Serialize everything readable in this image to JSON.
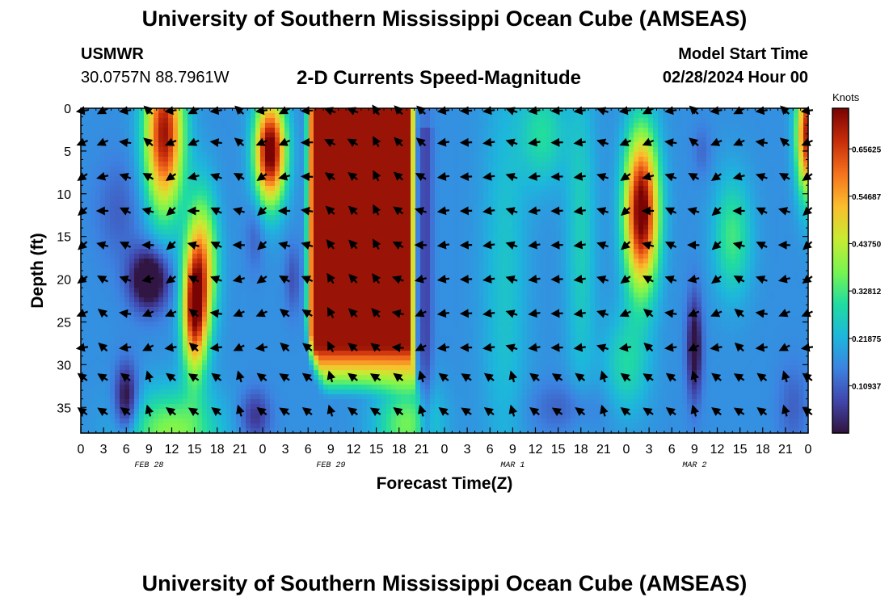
{
  "page": {
    "title": "University of Southern Mississippi Ocean Cube (AMSEAS)",
    "footer_title": "University of Southern Mississippi Ocean Cube (AMSEAS)",
    "station": "USMWR",
    "coordinates": "30.0757N  88.7961W",
    "plot_title": "2-D Currents Speed-Magnitude",
    "model_start_label": "Model Start Time",
    "model_start_value": "02/28/2024 Hour 00"
  },
  "chart_data": {
    "type": "heatmap",
    "title": "2-D Currents Speed-Magnitude",
    "xlabel": "Forecast Time(Z)",
    "ylabel": "Depth (ft)",
    "x_range_hours": [
      0,
      96
    ],
    "ylim": [
      0,
      38
    ],
    "x_ticks": [
      "0",
      "3",
      "6",
      "9",
      "12",
      "15",
      "18",
      "21",
      "0",
      "3",
      "6",
      "9",
      "12",
      "15",
      "18",
      "21",
      "0",
      "3",
      "6",
      "9",
      "12",
      "15",
      "18",
      "21",
      "0",
      "3",
      "6",
      "9",
      "12",
      "15",
      "18",
      "21",
      "0"
    ],
    "y_ticks": [
      "0",
      "5",
      "10",
      "15",
      "20",
      "25",
      "30",
      "35"
    ],
    "date_labels": [
      {
        "text": "FEB 28",
        "hour": 9
      },
      {
        "text": "FEB 29",
        "hour": 33
      },
      {
        "text": "MAR 1",
        "hour": 57
      },
      {
        "text": "MAR 2",
        "hour": 81
      }
    ],
    "colorbar": {
      "title": "Knots",
      "ticks": [
        "0.65625",
        "0.54687",
        "0.43750",
        "0.32812",
        "0.21875",
        "0.10937"
      ],
      "range": [
        0,
        0.75
      ]
    },
    "features": [
      {
        "hour": 11,
        "depth": 3,
        "speed": 0.55,
        "sh": 2.5,
        "sd": 9
      },
      {
        "hour": 15,
        "depth": 24,
        "speed": 0.48,
        "sh": 1.6,
        "sd": 7
      },
      {
        "hour": 16,
        "depth": 18,
        "speed": 0.34,
        "sh": 2.0,
        "sd": 8
      },
      {
        "hour": 25,
        "depth": 5,
        "speed": 0.62,
        "sh": 2.0,
        "sd": 6
      },
      {
        "hour": 12,
        "depth": 38,
        "speed": 0.22,
        "sh": 6,
        "sd": 5
      },
      {
        "hour": 9,
        "depth": 20,
        "speed": -0.26,
        "sh": 2.5,
        "sd": 3.5
      },
      {
        "hour": 6,
        "depth": 34,
        "speed": -0.2,
        "sh": 1.5,
        "sd": 4
      },
      {
        "hour": 23,
        "depth": 36,
        "speed": -0.12,
        "sh": 2,
        "sd": 3
      },
      {
        "hour": 5,
        "depth": 12,
        "speed": -0.06,
        "sh": 3,
        "sd": 6
      },
      {
        "hour": 23,
        "depth": 15,
        "speed": -0.06,
        "sh": 1.2,
        "sd": 4
      },
      {
        "hour": 28,
        "depth": 20,
        "speed": -0.08,
        "sh": 1.0,
        "sd": 4
      },
      {
        "hour": 43,
        "depth": 37,
        "speed": 0.2,
        "sh": 4,
        "sd": 5
      },
      {
        "hour": 56,
        "depth": 20,
        "speed": 0.08,
        "sh": 3,
        "sd": 25
      },
      {
        "hour": 61,
        "depth": 3,
        "speed": 0.13,
        "sh": 3,
        "sd": 6
      },
      {
        "hour": 66,
        "depth": 15,
        "speed": 0.1,
        "sh": 2,
        "sd": 20
      },
      {
        "hour": 64,
        "depth": 35,
        "speed": -0.06,
        "sh": 5,
        "sd": 3
      },
      {
        "hour": 74,
        "depth": 12,
        "speed": 0.62,
        "sh": 2.2,
        "sd": 9
      },
      {
        "hour": 72,
        "depth": 30,
        "speed": 0.12,
        "sh": 3,
        "sd": 6
      },
      {
        "hour": 81,
        "depth": 28,
        "speed": -0.2,
        "sh": 1.0,
        "sd": 6
      },
      {
        "hour": 86,
        "depth": 15,
        "speed": 0.16,
        "sh": 2.5,
        "sd": 7
      },
      {
        "hour": 82,
        "depth": 5,
        "speed": -0.05,
        "sh": 1.2,
        "sd": 3
      },
      {
        "hour": 94,
        "depth": 35,
        "speed": -0.06,
        "sh": 2,
        "sd": 5
      },
      {
        "hour": 96,
        "depth": 3,
        "speed": 0.55,
        "sh": 1.5,
        "sd": 7
      }
    ],
    "core_region": {
      "hours": [
        29.5,
        44.5
      ],
      "depth_max": 28,
      "speed": 0.72
    },
    "arrow_rows_depth": [
      0,
      4,
      8,
      12,
      16,
      20,
      24,
      28,
      31.5,
      35.5
    ],
    "arrow_cols_every_hours": 3
  }
}
